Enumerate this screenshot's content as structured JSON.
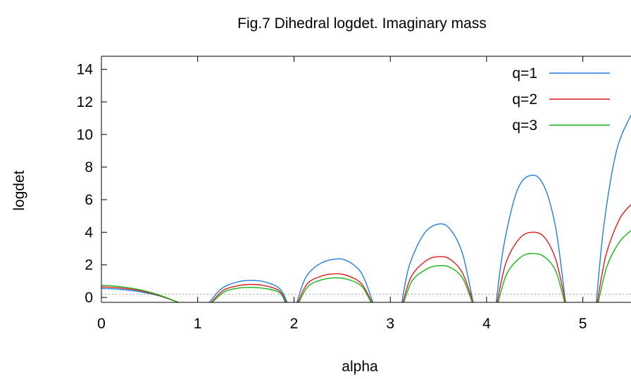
{
  "chart_data": {
    "type": "line",
    "title": "Fig.7 Dihedral logdet. Imaginary mass",
    "xlabel": "alpha",
    "ylabel": "logdet",
    "xlim": [
      0,
      5.5
    ],
    "ylim": [
      -0.3,
      14.8
    ],
    "xticks": [
      0,
      1,
      2,
      3,
      4,
      5
    ],
    "yticks": [
      0,
      2,
      4,
      6,
      8,
      10,
      12,
      14
    ],
    "reference_line_y": 0.2,
    "grid": false,
    "legend_position": "top-right",
    "series": [
      {
        "name": "q=1",
        "color": "#1f7fe0",
        "segments": [
          [
            [
              0,
              0.55
            ],
            [
              0.2,
              0.5
            ],
            [
              0.4,
              0.35
            ],
            [
              0.6,
              0.1
            ],
            [
              0.8,
              -0.3
            ]
          ],
          [
            [
              1.12,
              -0.3
            ],
            [
              1.25,
              0.55
            ],
            [
              1.4,
              0.93
            ],
            [
              1.55,
              1.05
            ],
            [
              1.7,
              0.95
            ],
            [
              1.85,
              0.55
            ],
            [
              1.93,
              -0.3
            ]
          ],
          [
            [
              2.03,
              -0.3
            ],
            [
              2.12,
              1.2
            ],
            [
              2.25,
              2.0
            ],
            [
              2.42,
              2.35
            ],
            [
              2.55,
              2.25
            ],
            [
              2.7,
              1.5
            ],
            [
              2.82,
              -0.3
            ]
          ],
          [
            [
              3.12,
              -0.3
            ],
            [
              3.2,
              2.0
            ],
            [
              3.35,
              3.9
            ],
            [
              3.5,
              4.5
            ],
            [
              3.62,
              4.2
            ],
            [
              3.75,
              2.7
            ],
            [
              3.86,
              -0.3
            ]
          ],
          [
            [
              4.1,
              -0.3
            ],
            [
              4.18,
              3.2
            ],
            [
              4.32,
              6.6
            ],
            [
              4.47,
              7.5
            ],
            [
              4.6,
              6.8
            ],
            [
              4.72,
              4.2
            ],
            [
              4.82,
              -0.3
            ]
          ],
          [
            [
              5.14,
              -0.3
            ],
            [
              5.22,
              4.5
            ],
            [
              5.35,
              9.0
            ],
            [
              5.5,
              11.2
            ]
          ]
        ]
      },
      {
        "name": "q=2",
        "color": "#e01b1b",
        "segments": [
          [
            [
              0,
              0.65
            ],
            [
              0.2,
              0.58
            ],
            [
              0.4,
              0.42
            ],
            [
              0.6,
              0.12
            ],
            [
              0.8,
              -0.3
            ]
          ],
          [
            [
              1.14,
              -0.3
            ],
            [
              1.27,
              0.45
            ],
            [
              1.42,
              0.72
            ],
            [
              1.55,
              0.8
            ],
            [
              1.7,
              0.72
            ],
            [
              1.85,
              0.4
            ],
            [
              1.92,
              -0.3
            ]
          ],
          [
            [
              2.04,
              -0.3
            ],
            [
              2.14,
              0.85
            ],
            [
              2.28,
              1.3
            ],
            [
              2.42,
              1.45
            ],
            [
              2.55,
              1.35
            ],
            [
              2.7,
              0.85
            ],
            [
              2.81,
              -0.3
            ]
          ],
          [
            [
              3.13,
              -0.3
            ],
            [
              3.22,
              1.3
            ],
            [
              3.37,
              2.25
            ],
            [
              3.5,
              2.5
            ],
            [
              3.62,
              2.35
            ],
            [
              3.75,
              1.5
            ],
            [
              3.86,
              -0.3
            ]
          ],
          [
            [
              4.11,
              -0.3
            ],
            [
              4.2,
              2.1
            ],
            [
              4.34,
              3.6
            ],
            [
              4.47,
              4.0
            ],
            [
              4.6,
              3.7
            ],
            [
              4.72,
              2.3
            ],
            [
              4.82,
              -0.3
            ]
          ],
          [
            [
              5.15,
              -0.3
            ],
            [
              5.24,
              2.6
            ],
            [
              5.38,
              4.8
            ],
            [
              5.5,
              5.7
            ]
          ]
        ]
      },
      {
        "name": "q=3",
        "color": "#16b616",
        "segments": [
          [
            [
              0,
              0.75
            ],
            [
              0.2,
              0.66
            ],
            [
              0.4,
              0.47
            ],
            [
              0.6,
              0.15
            ],
            [
              0.8,
              -0.3
            ]
          ],
          [
            [
              1.15,
              -0.3
            ],
            [
              1.28,
              0.35
            ],
            [
              1.43,
              0.58
            ],
            [
              1.55,
              0.62
            ],
            [
              1.7,
              0.55
            ],
            [
              1.85,
              0.3
            ],
            [
              1.91,
              -0.3
            ]
          ],
          [
            [
              2.05,
              -0.3
            ],
            [
              2.15,
              0.7
            ],
            [
              2.3,
              1.1
            ],
            [
              2.43,
              1.2
            ],
            [
              2.55,
              1.12
            ],
            [
              2.7,
              0.7
            ],
            [
              2.8,
              -0.3
            ]
          ],
          [
            [
              3.14,
              -0.3
            ],
            [
              3.23,
              1.05
            ],
            [
              3.38,
              1.75
            ],
            [
              3.5,
              1.95
            ],
            [
              3.62,
              1.85
            ],
            [
              3.75,
              1.2
            ],
            [
              3.85,
              -0.3
            ]
          ],
          [
            [
              4.12,
              -0.3
            ],
            [
              4.21,
              1.45
            ],
            [
              4.35,
              2.45
            ],
            [
              4.47,
              2.7
            ],
            [
              4.6,
              2.5
            ],
            [
              4.72,
              1.6
            ],
            [
              4.81,
              -0.3
            ]
          ],
          [
            [
              5.16,
              -0.3
            ],
            [
              5.25,
              1.9
            ],
            [
              5.38,
              3.4
            ],
            [
              5.5,
              4.1
            ]
          ]
        ]
      }
    ]
  }
}
